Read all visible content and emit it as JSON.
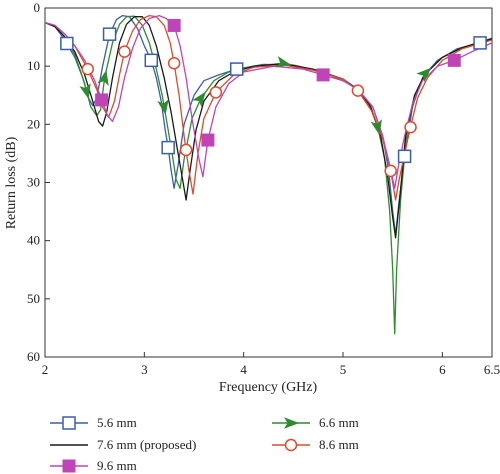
{
  "chart_data": {
    "type": "line",
    "xlabel": "Frequency (GHz)",
    "ylabel": "Return loss (dB)",
    "xlim": [
      2,
      6.5
    ],
    "ylim": [
      0,
      60
    ],
    "y_inverted": true,
    "grid": false,
    "legend_position": "bottom",
    "x_ticks": [
      2,
      3,
      4,
      5,
      6,
      6.5
    ],
    "y_ticks": [
      0,
      10,
      20,
      30,
      40,
      50,
      60
    ],
    "series": [
      {
        "name": "5.6 mm",
        "color": "#3a5fa8",
        "marker": "square",
        "marker_x": [
          2.22,
          2.65,
          3.07,
          3.24,
          3.93,
          5.62,
          6.38
        ],
        "points": [
          [
            2.0,
            2.5
          ],
          [
            2.1,
            3.2
          ],
          [
            2.2,
            5.5
          ],
          [
            2.3,
            8.5
          ],
          [
            2.38,
            12
          ],
          [
            2.44,
            15.5
          ],
          [
            2.48,
            16.8
          ],
          [
            2.52,
            15.5
          ],
          [
            2.58,
            10
          ],
          [
            2.65,
            4.5
          ],
          [
            2.72,
            2.0
          ],
          [
            2.78,
            1.3
          ],
          [
            2.85,
            1.5
          ],
          [
            2.93,
            3.5
          ],
          [
            3.0,
            6.5
          ],
          [
            3.07,
            9.0
          ],
          [
            3.12,
            12
          ],
          [
            3.17,
            16
          ],
          [
            3.21,
            21
          ],
          [
            3.24,
            24
          ],
          [
            3.27,
            28
          ],
          [
            3.3,
            31
          ],
          [
            3.34,
            27
          ],
          [
            3.4,
            20
          ],
          [
            3.5,
            15
          ],
          [
            3.6,
            12.5
          ],
          [
            3.75,
            11.5
          ],
          [
            3.93,
            10.5
          ],
          [
            4.2,
            9.7
          ],
          [
            4.5,
            9.8
          ],
          [
            4.8,
            11.0
          ],
          [
            5.0,
            12.5
          ],
          [
            5.15,
            14
          ],
          [
            5.3,
            17
          ],
          [
            5.4,
            22
          ],
          [
            5.46,
            28
          ],
          [
            5.5,
            35
          ],
          [
            5.53,
            39
          ],
          [
            5.56,
            34
          ],
          [
            5.62,
            25.5
          ],
          [
            5.7,
            17
          ],
          [
            5.8,
            12
          ],
          [
            5.95,
            9
          ],
          [
            6.15,
            7
          ],
          [
            6.38,
            6
          ],
          [
            6.5,
            5.5
          ]
        ]
      },
      {
        "name": "6.6 mm",
        "color": "#2e8b2e",
        "marker": "arrow",
        "marker_x": [
          2.42,
          2.6,
          3.2,
          3.57,
          4.4,
          5.35,
          5.83
        ],
        "points": [
          [
            2.0,
            2.5
          ],
          [
            2.1,
            3.2
          ],
          [
            2.2,
            5
          ],
          [
            2.3,
            8
          ],
          [
            2.4,
            13
          ],
          [
            2.46,
            17
          ],
          [
            2.52,
            18.5
          ],
          [
            2.56,
            17.5
          ],
          [
            2.6,
            12
          ],
          [
            2.68,
            6
          ],
          [
            2.75,
            2.8
          ],
          [
            2.82,
            1.5
          ],
          [
            2.9,
            1.4
          ],
          [
            2.98,
            3
          ],
          [
            3.05,
            6
          ],
          [
            3.12,
            10.5
          ],
          [
            3.18,
            15
          ],
          [
            3.23,
            20
          ],
          [
            3.28,
            25
          ],
          [
            3.32,
            29.5
          ],
          [
            3.36,
            31
          ],
          [
            3.4,
            26
          ],
          [
            3.48,
            19
          ],
          [
            3.57,
            15.5
          ],
          [
            3.7,
            12.5
          ],
          [
            3.85,
            11
          ],
          [
            4.1,
            10
          ],
          [
            4.4,
            9.5
          ],
          [
            4.7,
            10.6
          ],
          [
            5.0,
            12.2
          ],
          [
            5.15,
            14
          ],
          [
            5.25,
            16
          ],
          [
            5.35,
            20.5
          ],
          [
            5.42,
            26
          ],
          [
            5.47,
            35
          ],
          [
            5.5,
            45
          ],
          [
            5.52,
            56
          ],
          [
            5.54,
            45
          ],
          [
            5.58,
            33
          ],
          [
            5.65,
            20
          ],
          [
            5.75,
            14
          ],
          [
            5.83,
            11.2
          ],
          [
            6.0,
            8.5
          ],
          [
            6.2,
            6.8
          ],
          [
            6.5,
            5.2
          ]
        ]
      },
      {
        "name": "7.6 mm (proposed)",
        "color": "#1a1a1a",
        "marker": "none",
        "marker_x": [],
        "points": [
          [
            2.0,
            2.5
          ],
          [
            2.1,
            3.2
          ],
          [
            2.2,
            5
          ],
          [
            2.3,
            7.5
          ],
          [
            2.4,
            11.5
          ],
          [
            2.48,
            16
          ],
          [
            2.54,
            19.5
          ],
          [
            2.58,
            20.3
          ],
          [
            2.62,
            18
          ],
          [
            2.68,
            12
          ],
          [
            2.75,
            6
          ],
          [
            2.82,
            2.8
          ],
          [
            2.9,
            1.5
          ],
          [
            2.98,
            1.5
          ],
          [
            3.05,
            3
          ],
          [
            3.12,
            6.5
          ],
          [
            3.2,
            12
          ],
          [
            3.27,
            18
          ],
          [
            3.33,
            24
          ],
          [
            3.38,
            29
          ],
          [
            3.42,
            33
          ],
          [
            3.46,
            28
          ],
          [
            3.52,
            21
          ],
          [
            3.6,
            16
          ],
          [
            3.75,
            12.5
          ],
          [
            3.9,
            11
          ],
          [
            4.1,
            10
          ],
          [
            4.4,
            9.6
          ],
          [
            4.7,
            10.5
          ],
          [
            5.0,
            12.2
          ],
          [
            5.15,
            14
          ],
          [
            5.28,
            17
          ],
          [
            5.38,
            22
          ],
          [
            5.45,
            29
          ],
          [
            5.5,
            36
          ],
          [
            5.53,
            39.5
          ],
          [
            5.57,
            33
          ],
          [
            5.63,
            22
          ],
          [
            5.72,
            15
          ],
          [
            5.82,
            11.5
          ],
          [
            6.0,
            8.5
          ],
          [
            6.2,
            6.8
          ],
          [
            6.5,
            5.3
          ]
        ]
      },
      {
        "name": "8.6 mm",
        "color": "#e04a2a",
        "marker": "circle",
        "marker_x": [
          2.43,
          2.8,
          3.3,
          3.42,
          3.72,
          5.15,
          5.48,
          5.68
        ],
        "points": [
          [
            2.0,
            2.5
          ],
          [
            2.1,
            3.0
          ],
          [
            2.2,
            4.5
          ],
          [
            2.3,
            6.5
          ],
          [
            2.43,
            10.5
          ],
          [
            2.52,
            14
          ],
          [
            2.58,
            17
          ],
          [
            2.64,
            18.8
          ],
          [
            2.7,
            16
          ],
          [
            2.75,
            11.5
          ],
          [
            2.8,
            7.5
          ],
          [
            2.88,
            4
          ],
          [
            2.96,
            2
          ],
          [
            3.05,
            1.3
          ],
          [
            3.12,
            1.5
          ],
          [
            3.2,
            3
          ],
          [
            3.26,
            6
          ],
          [
            3.3,
            9.5
          ],
          [
            3.35,
            15
          ],
          [
            3.4,
            22
          ],
          [
            3.45,
            28
          ],
          [
            3.49,
            32
          ],
          [
            3.54,
            25
          ],
          [
            3.6,
            19
          ],
          [
            3.72,
            14.5
          ],
          [
            3.9,
            11.5
          ],
          [
            4.1,
            10.2
          ],
          [
            4.4,
            9.8
          ],
          [
            4.7,
            10.7
          ],
          [
            5.0,
            12.2
          ],
          [
            5.15,
            14.2
          ],
          [
            5.3,
            18
          ],
          [
            5.4,
            22.5
          ],
          [
            5.48,
            28
          ],
          [
            5.53,
            33
          ],
          [
            5.56,
            30
          ],
          [
            5.62,
            25
          ],
          [
            5.68,
            20.5
          ],
          [
            5.75,
            15.5
          ],
          [
            5.85,
            12
          ],
          [
            6.0,
            9
          ],
          [
            6.2,
            7
          ],
          [
            6.5,
            5.5
          ]
        ]
      },
      {
        "name": "9.6 mm",
        "color": "#c044b8",
        "marker": "filled-square",
        "marker_x": [
          2.57,
          3.3,
          3.64,
          4.8,
          6.12
        ],
        "points": [
          [
            2.0,
            2.5
          ],
          [
            2.1,
            3.0
          ],
          [
            2.2,
            4.5
          ],
          [
            2.3,
            6.5
          ],
          [
            2.4,
            9
          ],
          [
            2.5,
            12.5
          ],
          [
            2.57,
            15.8
          ],
          [
            2.63,
            18.5
          ],
          [
            2.68,
            19.5
          ],
          [
            2.74,
            17
          ],
          [
            2.8,
            12
          ],
          [
            2.88,
            7
          ],
          [
            2.96,
            3.5
          ],
          [
            3.05,
            1.8
          ],
          [
            3.15,
            1.3
          ],
          [
            3.22,
            1.8
          ],
          [
            3.3,
            3
          ],
          [
            3.36,
            6.5
          ],
          [
            3.42,
            12
          ],
          [
            3.48,
            19
          ],
          [
            3.55,
            26
          ],
          [
            3.59,
            29
          ],
          [
            3.64,
            22.7
          ],
          [
            3.72,
            17
          ],
          [
            3.85,
            13
          ],
          [
            4.0,
            11
          ],
          [
            4.3,
            10
          ],
          [
            4.6,
            10.5
          ],
          [
            4.8,
            11.5
          ],
          [
            5.0,
            12.5
          ],
          [
            5.15,
            14
          ],
          [
            5.3,
            17
          ],
          [
            5.4,
            22
          ],
          [
            5.47,
            27
          ],
          [
            5.52,
            31
          ],
          [
            5.56,
            27
          ],
          [
            5.62,
            22
          ],
          [
            5.7,
            16.5
          ],
          [
            5.8,
            12.5
          ],
          [
            5.95,
            10
          ],
          [
            6.12,
            9
          ],
          [
            6.3,
            7.5
          ],
          [
            6.5,
            6
          ]
        ]
      }
    ]
  }
}
